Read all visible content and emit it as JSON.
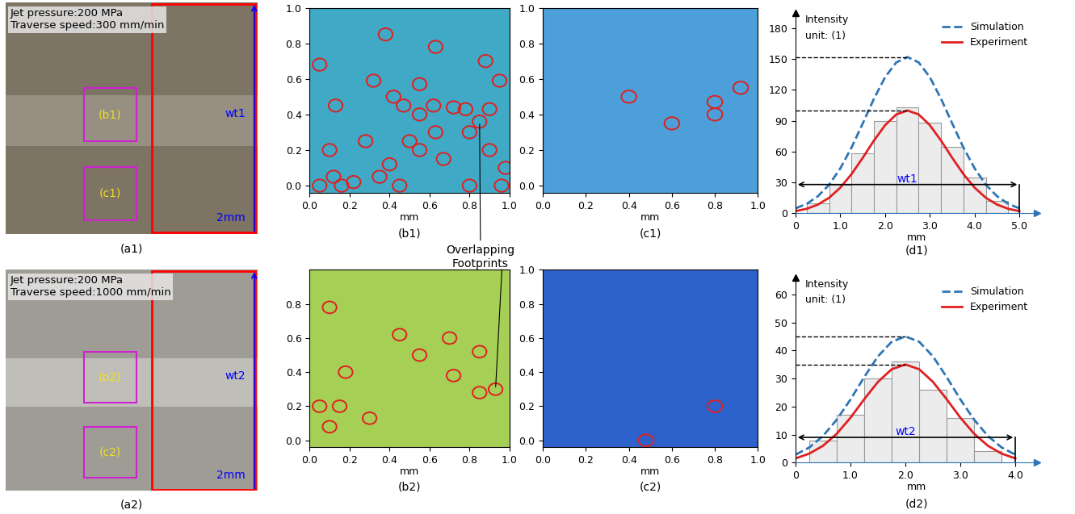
{
  "micrographs": [
    {
      "label": "(a1)",
      "texts": [
        "Jet pressure:200 MPa",
        "Traverse speed:300 mm/min"
      ],
      "boxes": [
        "(b1)",
        "(c1)"
      ],
      "width_label": "wt1",
      "scale_text": "2mm",
      "color": "#7d7464"
    },
    {
      "label": "(a2)",
      "texts": [
        "Jet pressure:200 MPa",
        "Traverse speed:1000 mm/min"
      ],
      "boxes": [
        "(b2)",
        "(c2)"
      ],
      "width_label": "wt2",
      "scale_text": "2mm",
      "color": "#9e9c94"
    }
  ],
  "surfaces": [
    {
      "label": "(b1)",
      "xlabel": "mm",
      "xlim": [
        0.0,
        1.0
      ],
      "ylim": [
        -0.04,
        1.0
      ],
      "xticks": [
        0.0,
        0.2,
        0.4,
        0.6,
        0.8,
        1.0
      ],
      "yticks": [
        0.0,
        0.2,
        0.4,
        0.6,
        0.8,
        1.0
      ],
      "color": "#3fa9c6",
      "footprints": {
        "color": "#e02020",
        "radius": 0.035,
        "points": [
          [
            0.05,
            0.68
          ],
          [
            0.38,
            0.85
          ],
          [
            0.13,
            0.45
          ],
          [
            0.32,
            0.59
          ],
          [
            0.55,
            0.57
          ],
          [
            0.63,
            0.78
          ],
          [
            0.88,
            0.7
          ],
          [
            0.95,
            0.59
          ],
          [
            0.42,
            0.5
          ],
          [
            0.47,
            0.45
          ],
          [
            0.55,
            0.4
          ],
          [
            0.62,
            0.45
          ],
          [
            0.72,
            0.44
          ],
          [
            0.78,
            0.43
          ],
          [
            0.9,
            0.43
          ],
          [
            0.63,
            0.3
          ],
          [
            0.8,
            0.3
          ],
          [
            0.9,
            0.2
          ],
          [
            0.1,
            0.2
          ],
          [
            0.28,
            0.25
          ],
          [
            0.5,
            0.25
          ],
          [
            0.55,
            0.2
          ],
          [
            0.67,
            0.15
          ],
          [
            0.35,
            0.05
          ],
          [
            0.4,
            0.12
          ],
          [
            0.12,
            0.05
          ],
          [
            0.16,
            0.0
          ],
          [
            0.22,
            0.02
          ],
          [
            0.05,
            0.0
          ],
          [
            0.45,
            0.0
          ],
          [
            0.8,
            0.0
          ],
          [
            0.96,
            0.0
          ],
          [
            0.98,
            0.1
          ],
          [
            0.85,
            0.36
          ]
        ]
      }
    },
    {
      "label": "(c1)",
      "xlabel": "mm",
      "xlim": [
        0.0,
        1.0
      ],
      "ylim": [
        -0.04,
        1.0
      ],
      "xticks": [
        0.0,
        0.2,
        0.4,
        0.6,
        0.8,
        1.0
      ],
      "yticks": [
        0.0,
        0.2,
        0.4,
        0.6,
        0.8,
        1.0
      ],
      "color": "#4c9fd8",
      "footprints": {
        "color": "#e02020",
        "radius": 0.035,
        "points": [
          [
            0.4,
            0.5
          ],
          [
            0.6,
            0.35
          ],
          [
            0.8,
            0.47
          ],
          [
            0.8,
            0.4
          ],
          [
            0.92,
            0.55
          ]
        ]
      }
    },
    {
      "label": "(b2)",
      "xlabel": "mm",
      "xlim": [
        0.0,
        1.0
      ],
      "ylim": [
        -0.04,
        1.0
      ],
      "xticks": [
        0.0,
        0.2,
        0.4,
        0.6,
        0.8,
        1.0
      ],
      "yticks": [
        0.0,
        0.2,
        0.4,
        0.6,
        0.8
      ],
      "color": "#a6cf55",
      "footprints": {
        "color": "#e02020",
        "radius": 0.035,
        "points": [
          [
            0.1,
            0.78
          ],
          [
            0.18,
            0.4
          ],
          [
            0.05,
            0.2
          ],
          [
            0.1,
            0.08
          ],
          [
            0.15,
            0.2
          ],
          [
            0.3,
            0.13
          ],
          [
            0.45,
            0.62
          ],
          [
            0.55,
            0.5
          ],
          [
            0.7,
            0.6
          ],
          [
            0.85,
            0.52
          ],
          [
            0.72,
            0.38
          ],
          [
            0.85,
            0.28
          ],
          [
            0.93,
            0.3
          ]
        ]
      }
    },
    {
      "label": "(c2)",
      "xlabel": "mm",
      "xlim": [
        0.0,
        1.0
      ],
      "ylim": [
        -0.04,
        1.0
      ],
      "xticks": [
        0.0,
        0.2,
        0.4,
        0.6,
        0.8,
        1.0
      ],
      "yticks": [
        0.0,
        0.2,
        0.4,
        0.6,
        0.8,
        1.0
      ],
      "color": "#2d62cc",
      "footprints": {
        "color": "#e02020",
        "radius": 0.035,
        "points": [
          [
            0.8,
            0.2
          ],
          [
            0.48,
            0.0
          ]
        ]
      }
    }
  ],
  "annotation": "Overlapping\nFootprints",
  "chart_data": [
    {
      "type": "histogram",
      "label": "(d1)",
      "texts": [
        "Intensity",
        "unit: (1)"
      ],
      "xlabel": "mm",
      "xlim": [
        0,
        5.4
      ],
      "ylim": [
        0,
        195
      ],
      "xticks": [
        0,
        1.0,
        2.0,
        3.0,
        4.0,
        5.0
      ],
      "yticks": [
        0,
        30,
        60,
        90,
        120,
        150,
        180
      ],
      "color": "#ececec",
      "bins": [
        0.25,
        0.75,
        1.25,
        1.75,
        2.25,
        2.75,
        3.25,
        3.75,
        4.25,
        4.75
      ],
      "counts": [
        10,
        28,
        58,
        90,
        103,
        88,
        65,
        35,
        12
      ],
      "series": [
        {
          "name": "Simulation",
          "type": "line",
          "color": "#2e75b6",
          "line_style": "dashed",
          "x": [
            0,
            0.25,
            0.5,
            0.75,
            1.0,
            1.25,
            1.5,
            1.75,
            2.0,
            2.25,
            2.5,
            2.75,
            3.0,
            3.25,
            3.5,
            3.75,
            4.0,
            4.25,
            4.5,
            4.75,
            5.0
          ],
          "values": [
            4.8,
            9.2,
            16.6,
            27.8,
            43.7,
            63.9,
            87.3,
            111.3,
            132.4,
            146.8,
            152,
            146.8,
            132.4,
            111.3,
            87.3,
            63.9,
            43.7,
            27.8,
            16.6,
            9.2,
            4.8
          ]
        },
        {
          "name": "Experiment",
          "type": "line",
          "color": "#e02020",
          "line_style": "solid",
          "x": [
            0,
            0.25,
            0.5,
            0.75,
            1.0,
            1.25,
            1.5,
            1.75,
            2.0,
            2.25,
            2.5,
            2.75,
            3.0,
            3.25,
            3.5,
            3.75,
            4.0,
            4.25,
            4.5,
            4.75,
            5.0
          ],
          "values": [
            2.1,
            4.4,
            8.5,
            15.1,
            24.9,
            38.1,
            53.9,
            70.7,
            85.7,
            96.2,
            100,
            96.2,
            85.7,
            70.7,
            53.9,
            38.1,
            24.9,
            15.1,
            8.5,
            4.4,
            2.1
          ]
        }
      ],
      "width": {
        "from": 0,
        "to": 5.0,
        "y": 28,
        "label": "wt1"
      },
      "legend": "upper right"
    },
    {
      "type": "histogram",
      "label": "(d2)",
      "texts": [
        "Intensity",
        "unit: (1)"
      ],
      "xlabel": "mm",
      "xlim": [
        0,
        4.4
      ],
      "ylim": [
        0,
        66
      ],
      "xticks": [
        0,
        1.0,
        2.0,
        3.0,
        4.0
      ],
      "yticks": [
        0,
        10,
        20,
        30,
        40,
        50,
        60
      ],
      "color": "#ececec",
      "bins": [
        0.25,
        0.75,
        1.25,
        1.75,
        2.25,
        2.75,
        3.25,
        3.75
      ],
      "counts": [
        8,
        17,
        30,
        36,
        26,
        16,
        4
      ],
      "series": [
        {
          "name": "Simulation",
          "type": "line",
          "color": "#2e75b6",
          "line_style": "dashed",
          "x": [
            0,
            0.25,
            0.5,
            0.75,
            1.0,
            1.25,
            1.5,
            1.75,
            2.0,
            2.25,
            2.5,
            2.75,
            3.0,
            3.25,
            3.5,
            3.75,
            4.0
          ],
          "values": [
            2.8,
            5.4,
            9.5,
            15.3,
            22.5,
            30.5,
            37.9,
            43.1,
            45,
            43.1,
            37.9,
            30.5,
            22.5,
            15.3,
            9.5,
            5.4,
            2.8
          ]
        },
        {
          "name": "Experiment",
          "type": "line",
          "color": "#e02020",
          "line_style": "solid",
          "x": [
            0,
            0.25,
            0.5,
            0.75,
            1.0,
            1.25,
            1.5,
            1.75,
            2.0,
            2.25,
            2.5,
            2.75,
            3.0,
            3.25,
            3.5,
            3.75,
            4.0
          ],
          "values": [
            1.5,
            3.2,
            6.0,
            10.3,
            16.0,
            22.6,
            28.8,
            33.3,
            35,
            33.3,
            28.8,
            22.6,
            16.0,
            10.3,
            6.0,
            3.2,
            1.5
          ]
        }
      ],
      "width": {
        "from": 0,
        "to": 4.0,
        "y": 9,
        "label": "wt2"
      },
      "legend": "upper right"
    }
  ]
}
